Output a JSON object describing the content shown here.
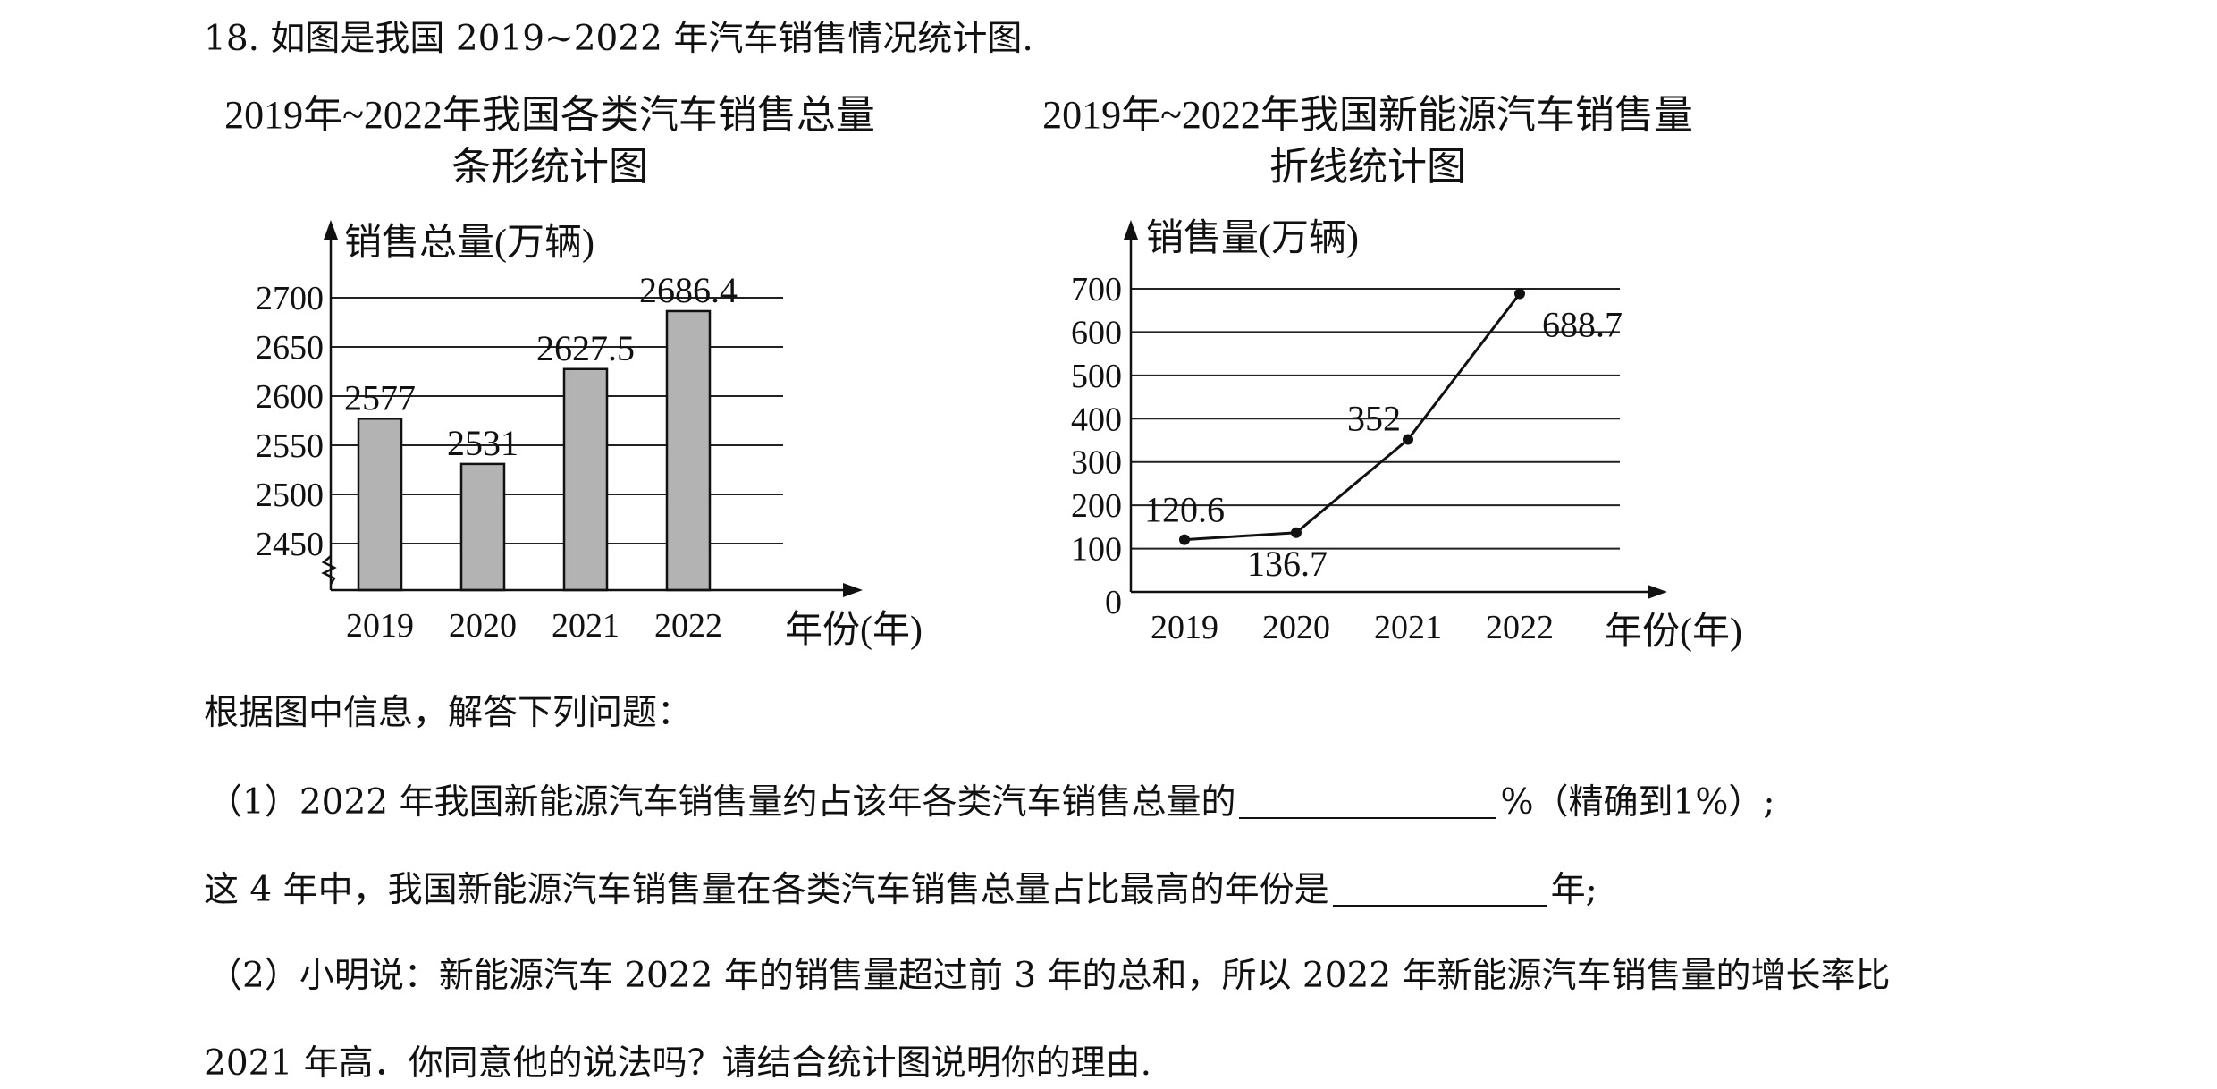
{
  "question": {
    "header": "18. 如图是我国 2019~2022 年汽车销售情况统计图.",
    "prompt": "根据图中信息，解答下列问题：",
    "q1_part_a": "（1）2022 年我国新能源汽车销售量约占该年各类汽车销售总量的",
    "q1_part_b": "%（精确到1%）;",
    "q1_part_c": "这 4 年中，我国新能源汽车销售量在各类汽车销售总量占比最高的年份是",
    "q1_part_d": "年;",
    "q2_line1": "（2）小明说：新能源汽车 2022 年的销售量超过前 3 年的总和，所以 2022 年新能源汽车销售量的增长率比",
    "q2_line2": "2021 年高．你同意他的说法吗？请结合统计图说明你的理由."
  },
  "chart_data": [
    {
      "type": "bar",
      "title": [
        "2019年~2022年我国各类汽车销售总量",
        "条形统计图"
      ],
      "ylabel": "销售总量(万辆)",
      "xlabel": "年份(年)",
      "categories": [
        "2019",
        "2020",
        "2021",
        "2022"
      ],
      "values": [
        2577,
        2531,
        2627.5,
        2686.4
      ],
      "value_labels": [
        "2577",
        "2531",
        "2627.5",
        "2686.4"
      ],
      "yticks": [
        2450,
        2500,
        2550,
        2600,
        2650,
        2700
      ],
      "ylim": [
        2400,
        2700
      ],
      "axis_break": true,
      "grid": true,
      "bar_color": "#b3b3b3"
    },
    {
      "type": "line",
      "title": [
        "2019年~2022年我国新能源汽车销售量",
        "折线统计图"
      ],
      "ylabel": "销售量(万辆)",
      "xlabel": "年份(年)",
      "categories": [
        "2019",
        "2020",
        "2021",
        "2022"
      ],
      "values": [
        120.6,
        136.7,
        352,
        688.7
      ],
      "value_labels": [
        "120.6",
        "136.7",
        "352",
        "688.7"
      ],
      "yticks": [
        0,
        100,
        200,
        300,
        400,
        500,
        600,
        700
      ],
      "ylim": [
        0,
        700
      ],
      "grid": true
    }
  ]
}
